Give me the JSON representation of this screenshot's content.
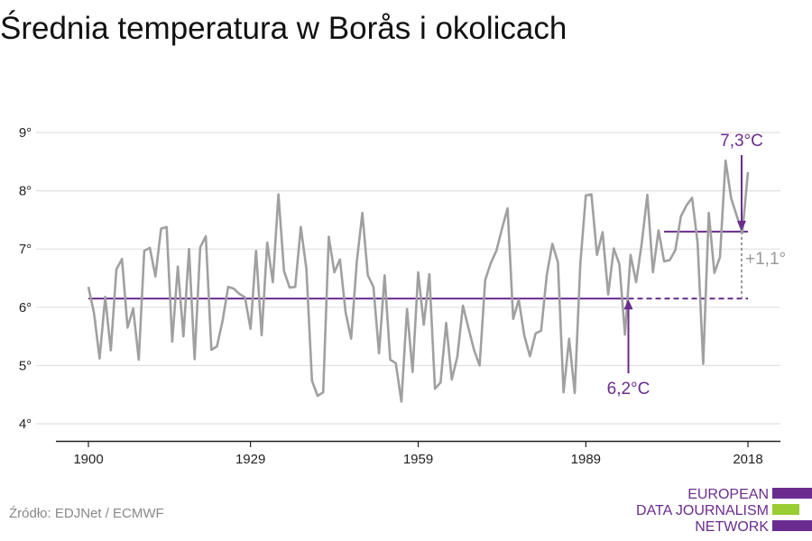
{
  "title": "Średnia temperatura w Borås i okolicach",
  "source": "Źródło: EDJNet / ECMWF",
  "logo": {
    "line1": "EUROPEAN",
    "line2": "DATA JOURNALISM",
    "line3": "NETWORK"
  },
  "colors": {
    "series": "#a0a0a0",
    "accent": "#6a2c8e",
    "delta": "#999999",
    "grid": "#e0e0e0",
    "logo_green": "#9acd32"
  },
  "chart_data": {
    "type": "line",
    "title": "Średnia temperatura w Borås i okolicach",
    "xlabel": "",
    "ylabel": "",
    "xlim": [
      1900,
      2018
    ],
    "ylim": [
      4,
      9
    ],
    "x_ticks": [
      1900,
      1929,
      1959,
      1989,
      2018
    ],
    "y_ticks": [
      4,
      5,
      6,
      7,
      8,
      9
    ],
    "y_tick_labels": [
      "4°",
      "5°",
      "6°",
      "7°",
      "8°",
      "9°"
    ],
    "grid": true,
    "series": [
      {
        "x": [
          1900,
          1901,
          1902,
          1903,
          1904,
          1905,
          1906,
          1907,
          1908,
          1909,
          1910,
          1911,
          1912,
          1913,
          1914,
          1915,
          1916,
          1917,
          1918,
          1919,
          1920,
          1921,
          1922,
          1923,
          1924,
          1925,
          1926,
          1927,
          1928,
          1929,
          1930,
          1931,
          1932,
          1933,
          1934,
          1935,
          1936,
          1937,
          1938,
          1939,
          1940,
          1941,
          1942,
          1943,
          1944,
          1945,
          1946,
          1947,
          1948,
          1949,
          1950,
          1951,
          1952,
          1953,
          1954,
          1955,
          1956,
          1957,
          1958,
          1959,
          1960,
          1961,
          1962,
          1963,
          1964,
          1965,
          1966,
          1967,
          1968,
          1969,
          1970,
          1971,
          1972,
          1973,
          1974,
          1975,
          1976,
          1977,
          1978,
          1979,
          1980,
          1981,
          1982,
          1983,
          1984,
          1985,
          1986,
          1987,
          1988,
          1989,
          1990,
          1991,
          1992,
          1993,
          1994,
          1995,
          1996,
          1997,
          1998,
          1999,
          2000,
          2001,
          2002,
          2003,
          2004,
          2005,
          2006,
          2007,
          2008,
          2009,
          2010,
          2011,
          2012,
          2013,
          2014,
          2015,
          2016,
          2017,
          2018
        ],
        "values": [
          6.35,
          5.9,
          5.12,
          6.18,
          5.26,
          6.65,
          6.83,
          5.65,
          5.98,
          5.1,
          6.97,
          7.02,
          6.53,
          7.35,
          7.38,
          5.41,
          6.7,
          5.5,
          7.0,
          5.11,
          7.03,
          7.22,
          5.27,
          5.33,
          5.77,
          6.35,
          6.32,
          6.23,
          6.17,
          5.63,
          6.97,
          5.52,
          7.11,
          6.43,
          7.94,
          6.62,
          6.34,
          6.35,
          7.38,
          6.66,
          4.74,
          4.48,
          4.54,
          7.21,
          6.6,
          6.82,
          5.92,
          5.46,
          6.77,
          7.62,
          6.55,
          6.35,
          5.21,
          6.55,
          5.1,
          5.04,
          4.38,
          5.97,
          4.89,
          6.6,
          5.7,
          6.57,
          4.6,
          4.71,
          5.73,
          4.76,
          5.15,
          6.03,
          5.64,
          5.27,
          5.0,
          6.47,
          6.76,
          6.97,
          7.35,
          7.7,
          5.8,
          6.13,
          5.51,
          5.16,
          5.55,
          5.6,
          6.55,
          7.09,
          6.77,
          4.54,
          5.46,
          4.53,
          6.74,
          7.92,
          7.94,
          6.9,
          7.29,
          6.22,
          7.01,
          6.74,
          5.53,
          6.9,
          6.43,
          7.1,
          7.93,
          6.6,
          7.32,
          6.79,
          6.81,
          6.98,
          7.56,
          7.75,
          7.88,
          7.11,
          5.03,
          7.62,
          6.59,
          6.86,
          8.52,
          7.87,
          7.57,
          7.28,
          8.32
        ]
      }
    ],
    "annotations": [
      {
        "label": "7,3°C",
        "value": 7.3,
        "x_from": 2003,
        "x_to": 2018
      },
      {
        "label": "6,2°C",
        "value": 6.15,
        "x_from": 1900,
        "x_to": 2018
      },
      {
        "label": "+1,1°",
        "type": "difference"
      }
    ]
  }
}
